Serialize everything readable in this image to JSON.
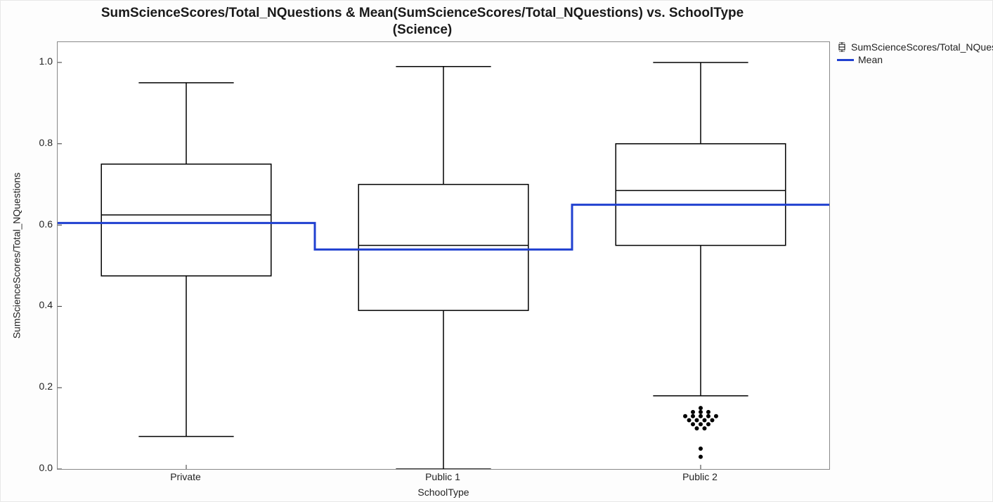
{
  "title_line1": "SumScienceScores/Total_NQuestions & Mean(SumScienceScores/Total_NQuestions) vs. SchoolType",
  "title_line2": "(Science)",
  "ylabel": "SumScienceScores/Total_NQuestions",
  "xlabel": "SchoolType",
  "ylim": [
    0.0,
    1.05
  ],
  "yticks": [
    0.0,
    0.2,
    0.4,
    0.6,
    0.8,
    1.0
  ],
  "ytick_labels": [
    "0.0",
    "0.2",
    "0.4",
    "0.6",
    "0.8",
    "1.0"
  ],
  "categories": [
    "Private",
    "Public 1",
    "Public 2"
  ],
  "box_stroke": "#000000",
  "box_stroke_width": 1.5,
  "box_fill": "none",
  "box_rel_width": 0.66,
  "mean_line_color": "#2040d0",
  "mean_line_width": 3,
  "outlier_color": "#000000",
  "outlier_radius": 3,
  "background_color": "#ffffff",
  "axis_color": "#888888",
  "tick_color": "#333333",
  "tick_fontsize": 14,
  "title_fontsize": 19,
  "label_fontsize": 14,
  "series": [
    {
      "category": "Private",
      "whisker_low": 0.08,
      "q1": 0.475,
      "median": 0.625,
      "q3": 0.75,
      "whisker_high": 0.95,
      "mean": 0.605,
      "outliers": []
    },
    {
      "category": "Public 1",
      "whisker_low": 0.0,
      "q1": 0.39,
      "median": 0.55,
      "q3": 0.7,
      "whisker_high": 0.99,
      "mean": 0.54,
      "outliers": []
    },
    {
      "category": "Public 2",
      "whisker_low": 0.18,
      "q1": 0.55,
      "median": 0.685,
      "q3": 0.8,
      "whisker_high": 1.0,
      "mean": 0.65,
      "outliers": [
        {
          "x_off": 0.0,
          "y": 0.15
        },
        {
          "x_off": -0.03,
          "y": 0.14
        },
        {
          "x_off": 0.0,
          "y": 0.14
        },
        {
          "x_off": 0.03,
          "y": 0.14
        },
        {
          "x_off": -0.06,
          "y": 0.13
        },
        {
          "x_off": -0.03,
          "y": 0.13
        },
        {
          "x_off": 0.0,
          "y": 0.13
        },
        {
          "x_off": 0.03,
          "y": 0.13
        },
        {
          "x_off": 0.06,
          "y": 0.13
        },
        {
          "x_off": -0.045,
          "y": 0.12
        },
        {
          "x_off": -0.015,
          "y": 0.12
        },
        {
          "x_off": 0.015,
          "y": 0.12
        },
        {
          "x_off": 0.045,
          "y": 0.12
        },
        {
          "x_off": -0.03,
          "y": 0.11
        },
        {
          "x_off": 0.0,
          "y": 0.11
        },
        {
          "x_off": 0.03,
          "y": 0.11
        },
        {
          "x_off": -0.015,
          "y": 0.1
        },
        {
          "x_off": 0.015,
          "y": 0.1
        },
        {
          "x_off": 0.0,
          "y": 0.05
        },
        {
          "x_off": 0.0,
          "y": 0.03
        }
      ]
    }
  ],
  "legend": {
    "box_label": "SumScienceScores/Total_NQuestions",
    "mean_label": "Mean"
  }
}
